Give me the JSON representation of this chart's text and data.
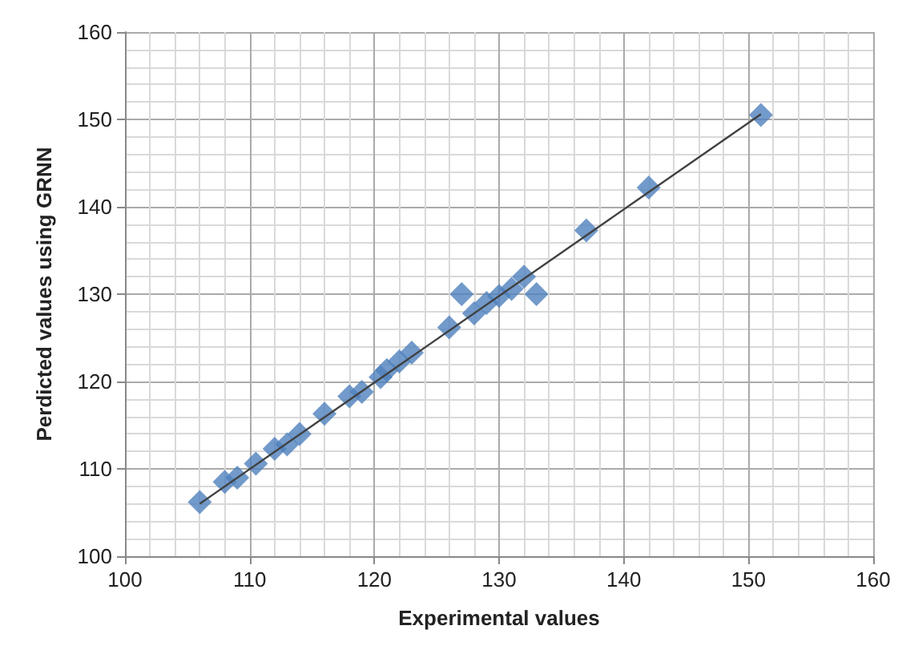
{
  "chart_data": {
    "type": "scatter",
    "xlabel": "Experimental values",
    "ylabel": "Perdicted values using GRNN",
    "xlim": [
      100,
      160
    ],
    "ylim": [
      100,
      160
    ],
    "xticks": [
      100,
      110,
      120,
      130,
      140,
      150,
      160
    ],
    "yticks": [
      100,
      110,
      120,
      130,
      140,
      150,
      160
    ],
    "grid": true,
    "marker": "diamond",
    "series": [
      {
        "color": "#4f81bd",
        "x": [
          106,
          108,
          109,
          110.5,
          112,
          113,
          114,
          116,
          118,
          119,
          120.5,
          121,
          122,
          123,
          126,
          127,
          128,
          129,
          130,
          131,
          132,
          133,
          137,
          142,
          151
        ],
        "values": [
          106.2,
          108.5,
          109,
          110.6,
          112.3,
          112.8,
          114,
          116.3,
          118.3,
          118.8,
          120.5,
          121.3,
          122.3,
          123.3,
          126.2,
          130,
          127.8,
          129,
          129.8,
          130.6,
          132,
          130,
          137.3,
          142.2,
          150.5
        ]
      },
      {
        "type": "line",
        "color": "#404040",
        "marker": "none",
        "x": [
          106,
          151
        ],
        "values": [
          106,
          150.6
        ]
      }
    ]
  }
}
